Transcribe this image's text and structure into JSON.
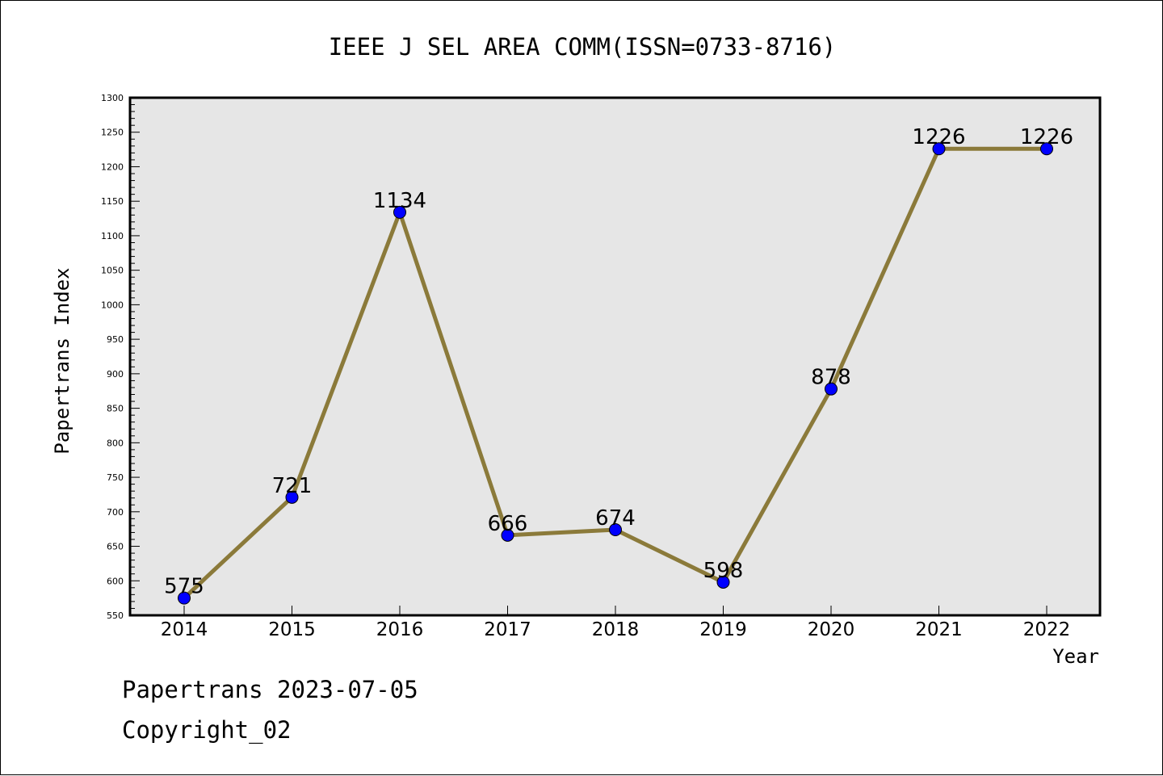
{
  "chart_data": {
    "type": "line",
    "title": "IEEE J SEL AREA COMM(ISSN=0733-8716)",
    "xlabel": "Year",
    "ylabel": "Papertrans Index",
    "categories": [
      "2014",
      "2015",
      "2016",
      "2017",
      "2018",
      "2019",
      "2020",
      "2021",
      "2022"
    ],
    "series": [
      {
        "values": [
          575,
          721,
          1134,
          666,
          674,
          598,
          878,
          1226,
          1226
        ]
      }
    ],
    "data_labels": [
      "575",
      "721",
      "1134",
      "666",
      "674",
      "598",
      "878",
      "1226",
      "1226"
    ],
    "ylim": [
      550,
      1300
    ],
    "yticks": [
      550,
      600,
      650,
      700,
      750,
      800,
      850,
      900,
      950,
      1000,
      1050,
      1100,
      1150,
      1200,
      1250,
      1300
    ],
    "grid": false,
    "colors": {
      "line": "#8b7a3a",
      "marker": "#0000ff",
      "plot_background": "#e6e6e6",
      "axes": "#000000"
    }
  },
  "footer": {
    "line1": "Papertrans 2023-07-05",
    "line2": "Copyright_02"
  }
}
